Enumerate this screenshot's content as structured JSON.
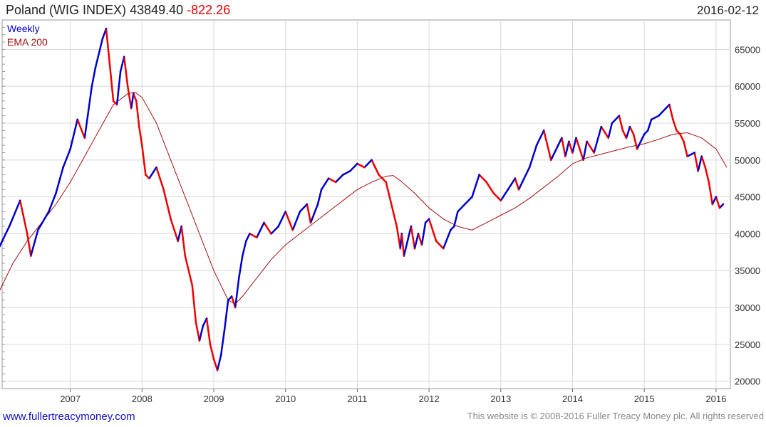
{
  "header": {
    "index_name": "Poland (WIG INDEX)",
    "price": "43849.40",
    "change": "-822.26",
    "date": "2016-02-12"
  },
  "footer": {
    "site": "www.fullertreacymoney.com",
    "copyright": "This website is © 2008-2016 Fuller Treacy Money plc. All rights reserved"
  },
  "colors": {
    "up": "#0000cc",
    "down": "#ee0000",
    "ema": "#a01010",
    "grid": "#d8d8d8"
  },
  "chart_data": {
    "type": "line",
    "legend": [
      "Weekly",
      "EMA 200"
    ],
    "legend_position": "top-left",
    "grid": true,
    "x_ticks": [
      "2007",
      "2008",
      "2009",
      "2010",
      "2011",
      "2012",
      "2013",
      "2014",
      "2015",
      "2016"
    ],
    "y_ticks": [
      20000,
      25000,
      30000,
      35000,
      40000,
      45000,
      50000,
      55000,
      60000,
      65000
    ],
    "xlim": [
      2006.05,
      2016.2
    ],
    "ylim": [
      19000,
      69000
    ],
    "series": [
      {
        "name": "Weekly",
        "x": [
          2006.0,
          2006.15,
          2006.3,
          2006.4,
          2006.45,
          2006.55,
          2006.7,
          2006.8,
          2006.9,
          2007.0,
          2007.1,
          2007.2,
          2007.3,
          2007.35,
          2007.45,
          2007.5,
          2007.55,
          2007.6,
          2007.65,
          2007.7,
          2007.75,
          2007.8,
          2007.85,
          2007.88,
          2007.92,
          2007.96,
          2008.0,
          2008.05,
          2008.1,
          2008.2,
          2008.3,
          2008.4,
          2008.5,
          2008.55,
          2008.6,
          2008.7,
          2008.75,
          2008.8,
          2008.85,
          2008.9,
          2008.95,
          2009.0,
          2009.05,
          2009.1,
          2009.15,
          2009.2,
          2009.25,
          2009.3,
          2009.35,
          2009.4,
          2009.45,
          2009.5,
          2009.6,
          2009.7,
          2009.8,
          2009.9,
          2010.0,
          2010.1,
          2010.2,
          2010.3,
          2010.35,
          2010.45,
          2010.5,
          2010.6,
          2010.7,
          2010.8,
          2010.9,
          2011.0,
          2011.1,
          2011.2,
          2011.25,
          2011.3,
          2011.4,
          2011.5,
          2011.55,
          2011.6,
          2011.62,
          2011.65,
          2011.7,
          2011.75,
          2011.8,
          2011.85,
          2011.9,
          2011.95,
          2012.0,
          2012.1,
          2012.2,
          2012.3,
          2012.35,
          2012.4,
          2012.5,
          2012.6,
          2012.7,
          2012.8,
          2012.9,
          2013.0,
          2013.1,
          2013.2,
          2013.25,
          2013.3,
          2013.4,
          2013.5,
          2013.6,
          2013.7,
          2013.8,
          2013.85,
          2013.9,
          2013.95,
          2014.0,
          2014.05,
          2014.1,
          2014.15,
          2014.2,
          2014.3,
          2014.4,
          2014.5,
          2014.55,
          2014.65,
          2014.7,
          2014.75,
          2014.8,
          2014.85,
          2014.9,
          2015.0,
          2015.05,
          2015.1,
          2015.2,
          2015.3,
          2015.35,
          2015.4,
          2015.45,
          2015.5,
          2015.55,
          2015.6,
          2015.7,
          2015.75,
          2015.8,
          2015.85,
          2015.9,
          2015.95,
          2016.0,
          2016.05,
          2016.1
        ],
        "y": [
          38000,
          41000,
          44500,
          40000,
          37000,
          40500,
          43000,
          45500,
          49000,
          51500,
          55500,
          53000,
          60000,
          62500,
          66500,
          67800,
          63000,
          58000,
          57500,
          62000,
          64000,
          60000,
          57000,
          59000,
          58000,
          54500,
          52000,
          48000,
          47500,
          49000,
          46000,
          42000,
          39000,
          41000,
          37000,
          33000,
          28000,
          25500,
          27500,
          28500,
          25000,
          23000,
          21500,
          23500,
          27000,
          31000,
          31500,
          30000,
          34000,
          37000,
          39000,
          40000,
          39500,
          41500,
          40000,
          41000,
          43000,
          40500,
          43000,
          44000,
          41500,
          44000,
          46000,
          47500,
          47000,
          48000,
          48500,
          49500,
          49000,
          50000,
          49000,
          48000,
          47000,
          43000,
          41000,
          38000,
          40000,
          37000,
          39000,
          41000,
          38000,
          40000,
          38500,
          41500,
          42000,
          39000,
          38000,
          40500,
          41000,
          43000,
          44000,
          45000,
          48000,
          47000,
          45500,
          44500,
          46000,
          47500,
          46000,
          47000,
          49000,
          52000,
          54000,
          50000,
          52000,
          53000,
          50500,
          52500,
          51000,
          53000,
          51500,
          50000,
          52500,
          51000,
          54500,
          53000,
          55000,
          56000,
          54000,
          53000,
          54500,
          53500,
          51500,
          53500,
          54000,
          55500,
          56000,
          57000,
          57500,
          55500,
          54000,
          53500,
          52500,
          50500,
          51000,
          48500,
          50500,
          49000,
          47000,
          44000,
          45000,
          43500,
          44000
        ]
      },
      {
        "name": "EMA 200",
        "x": [
          2006.0,
          2006.2,
          2006.4,
          2006.6,
          2006.8,
          2007.0,
          2007.2,
          2007.4,
          2007.6,
          2007.8,
          2007.9,
          2008.0,
          2008.2,
          2008.4,
          2008.6,
          2008.8,
          2009.0,
          2009.2,
          2009.3,
          2009.4,
          2009.6,
          2009.8,
          2010.0,
          2010.2,
          2010.4,
          2010.6,
          2010.8,
          2011.0,
          2011.2,
          2011.4,
          2011.5,
          2011.6,
          2011.8,
          2012.0,
          2012.2,
          2012.4,
          2012.6,
          2012.8,
          2013.0,
          2013.2,
          2013.4,
          2013.6,
          2013.8,
          2014.0,
          2014.2,
          2014.4,
          2014.6,
          2014.8,
          2015.0,
          2015.2,
          2015.4,
          2015.6,
          2015.8,
          2016.0,
          2016.15
        ],
        "y": [
          32000,
          36000,
          39000,
          41500,
          44000,
          47000,
          50500,
          54000,
          57500,
          59000,
          59200,
          58500,
          55000,
          50000,
          45000,
          40000,
          35000,
          31000,
          30500,
          31500,
          34000,
          36500,
          38500,
          40000,
          41500,
          43000,
          44500,
          46000,
          47000,
          47800,
          47900,
          47200,
          45500,
          43500,
          42000,
          41000,
          40500,
          41500,
          42500,
          43500,
          44800,
          46300,
          47800,
          49500,
          50300,
          50800,
          51300,
          51800,
          52200,
          52800,
          53500,
          53700,
          53000,
          51500,
          49000
        ]
      }
    ]
  }
}
